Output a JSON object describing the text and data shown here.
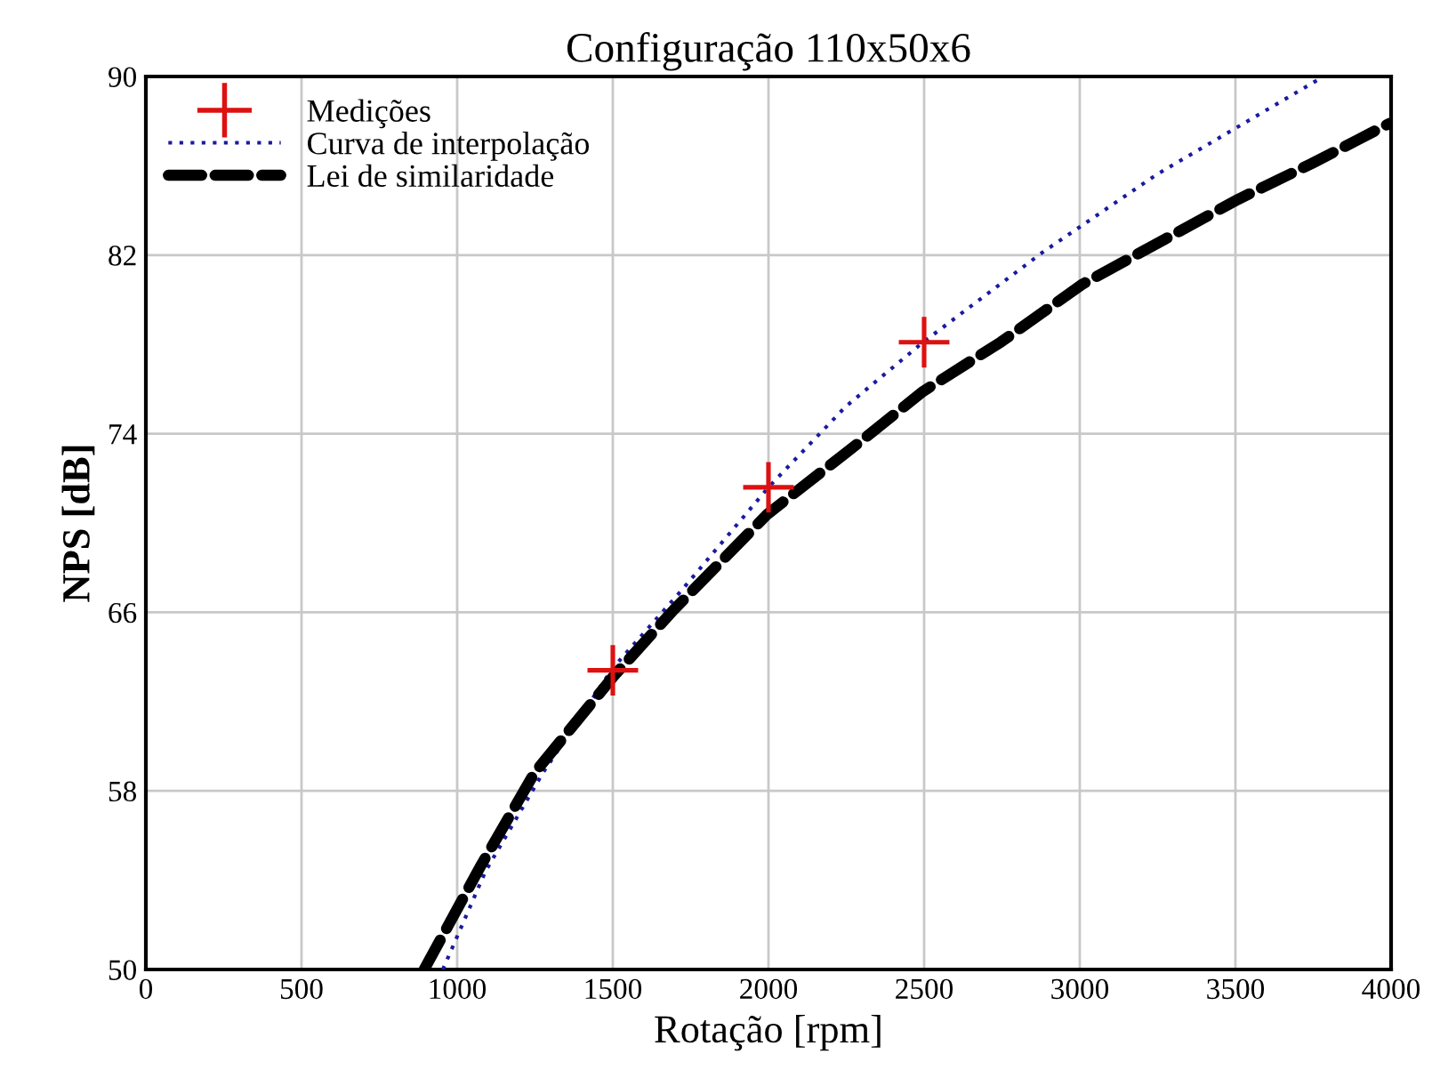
{
  "chart_data": {
    "type": "line",
    "title": "Configuração 110x50x6",
    "xlabel": "Rotação [rpm]",
    "ylabel": "NPS [dB]",
    "xlim": [
      0,
      4000
    ],
    "xticks": [
      0,
      500,
      1000,
      1500,
      2000,
      2500,
      3000,
      3500,
      4000
    ],
    "ylim": [
      50,
      90
    ],
    "yticks": [
      50,
      58,
      66,
      74,
      82,
      90
    ],
    "grid": true,
    "legend": "top left",
    "series": [
      {
        "name": "Medições",
        "type": "scatter",
        "marker": "cross",
        "color": "#dd1111",
        "x": [
          1500,
          2000,
          2500
        ],
        "values": [
          63.4,
          71.6,
          78.1
        ]
      },
      {
        "name": "Curva de interpolação",
        "line_style": "dotted",
        "color": "#1a1aa0",
        "x": [
          954,
          1091,
          1275,
          1500,
          1722,
          2000,
          2247,
          2497,
          2878,
          3246,
          3771
        ],
        "values": [
          50,
          54.4,
          58.8,
          63.5,
          67.0,
          71.6,
          75.2,
          78.1,
          82.1,
          85.6,
          89.9
        ]
      },
      {
        "name": "Lei de similaridade",
        "line_style": "dashed",
        "color": "#000000",
        "x": [
          894,
          1078,
          1248,
          1500,
          1695,
          1997,
          2300,
          2497,
          2746,
          3009,
          3272,
          3509,
          3745,
          3995
        ],
        "values": [
          50,
          54.7,
          58.8,
          63.1,
          66.1,
          70.4,
          73.7,
          75.9,
          78.1,
          80.7,
          82.7,
          84.5,
          86.1,
          87.9
        ]
      }
    ]
  }
}
